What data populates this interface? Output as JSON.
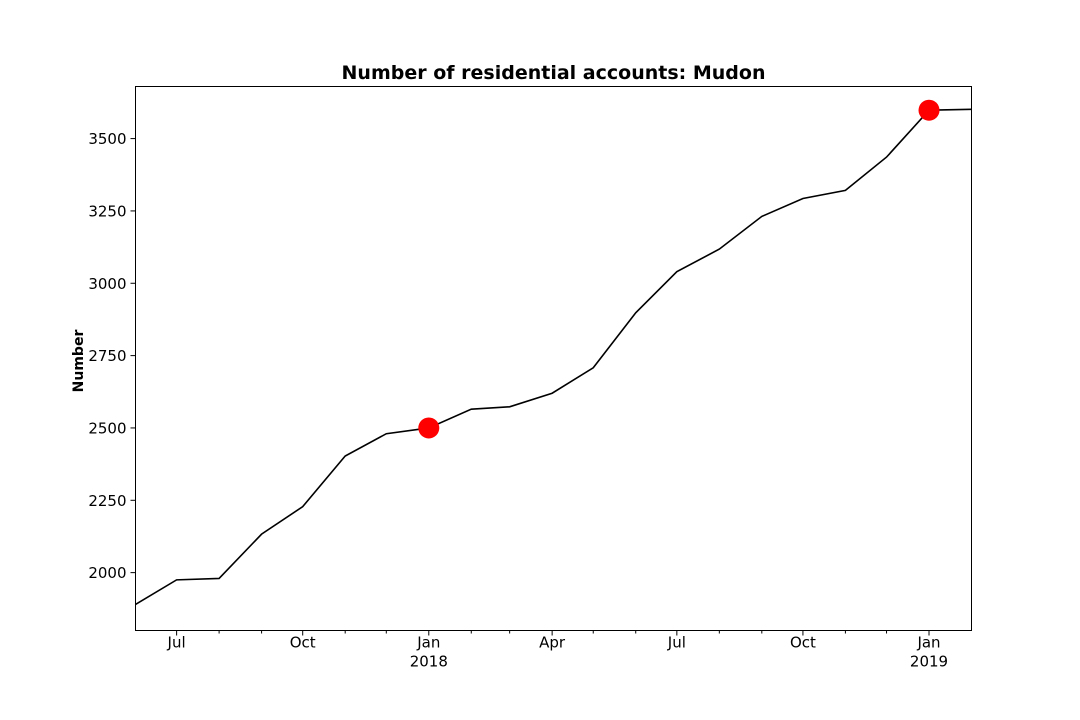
{
  "chart_data": {
    "type": "line",
    "title": "Number of residential accounts: Mudon",
    "xlabel": "",
    "ylabel": "Number",
    "x_type": "date",
    "xlim": [
      "2017-06-01",
      "2019-02-01"
    ],
    "ylim": [
      1800,
      3680
    ],
    "grid": false,
    "y_ticks": [
      2000,
      2250,
      2500,
      2750,
      3000,
      3250,
      3500
    ],
    "x_major_ticks": [
      {
        "date": "2017-07-01",
        "label": "Jul",
        "sublabel": ""
      },
      {
        "date": "2017-10-01",
        "label": "Oct",
        "sublabel": ""
      },
      {
        "date": "2018-01-01",
        "label": "Jan",
        "sublabel": "2018"
      },
      {
        "date": "2018-04-01",
        "label": "Apr",
        "sublabel": ""
      },
      {
        "date": "2018-07-01",
        "label": "Jul",
        "sublabel": ""
      },
      {
        "date": "2018-10-01",
        "label": "Oct",
        "sublabel": ""
      },
      {
        "date": "2019-01-01",
        "label": "Jan",
        "sublabel": "2019"
      }
    ],
    "x_minor_ticks": [
      "2017-08-01",
      "2017-09-01",
      "2017-11-01",
      "2017-12-01",
      "2018-02-01",
      "2018-03-01",
      "2018-05-01",
      "2018-06-01",
      "2018-08-01",
      "2018-09-01",
      "2018-11-01",
      "2018-12-01"
    ],
    "series": [
      {
        "color": "#000000",
        "points": [
          {
            "x": "2017-06-01",
            "y": 1890
          },
          {
            "x": "2017-07-01",
            "y": 1975
          },
          {
            "x": "2017-08-01",
            "y": 1980
          },
          {
            "x": "2017-09-01",
            "y": 2133
          },
          {
            "x": "2017-10-01",
            "y": 2228
          },
          {
            "x": "2017-11-01",
            "y": 2403
          },
          {
            "x": "2017-12-01",
            "y": 2480
          },
          {
            "x": "2018-01-01",
            "y": 2500
          },
          {
            "x": "2018-02-01",
            "y": 2565
          },
          {
            "x": "2018-03-01",
            "y": 2573
          },
          {
            "x": "2018-04-01",
            "y": 2620
          },
          {
            "x": "2018-05-01",
            "y": 2708
          },
          {
            "x": "2018-06-01",
            "y": 2898
          },
          {
            "x": "2018-07-01",
            "y": 3040
          },
          {
            "x": "2018-08-01",
            "y": 3118
          },
          {
            "x": "2018-09-01",
            "y": 3231
          },
          {
            "x": "2018-10-01",
            "y": 3293
          },
          {
            "x": "2018-11-01",
            "y": 3321
          },
          {
            "x": "2018-12-01",
            "y": 3436
          },
          {
            "x": "2019-01-01",
            "y": 3598
          },
          {
            "x": "2019-02-01",
            "y": 3601
          }
        ]
      }
    ],
    "highlighted_points": [
      {
        "x": "2018-01-01",
        "y": 2500,
        "color": "#ff0000"
      },
      {
        "x": "2019-01-01",
        "y": 3598,
        "color": "#ff0000"
      }
    ]
  }
}
